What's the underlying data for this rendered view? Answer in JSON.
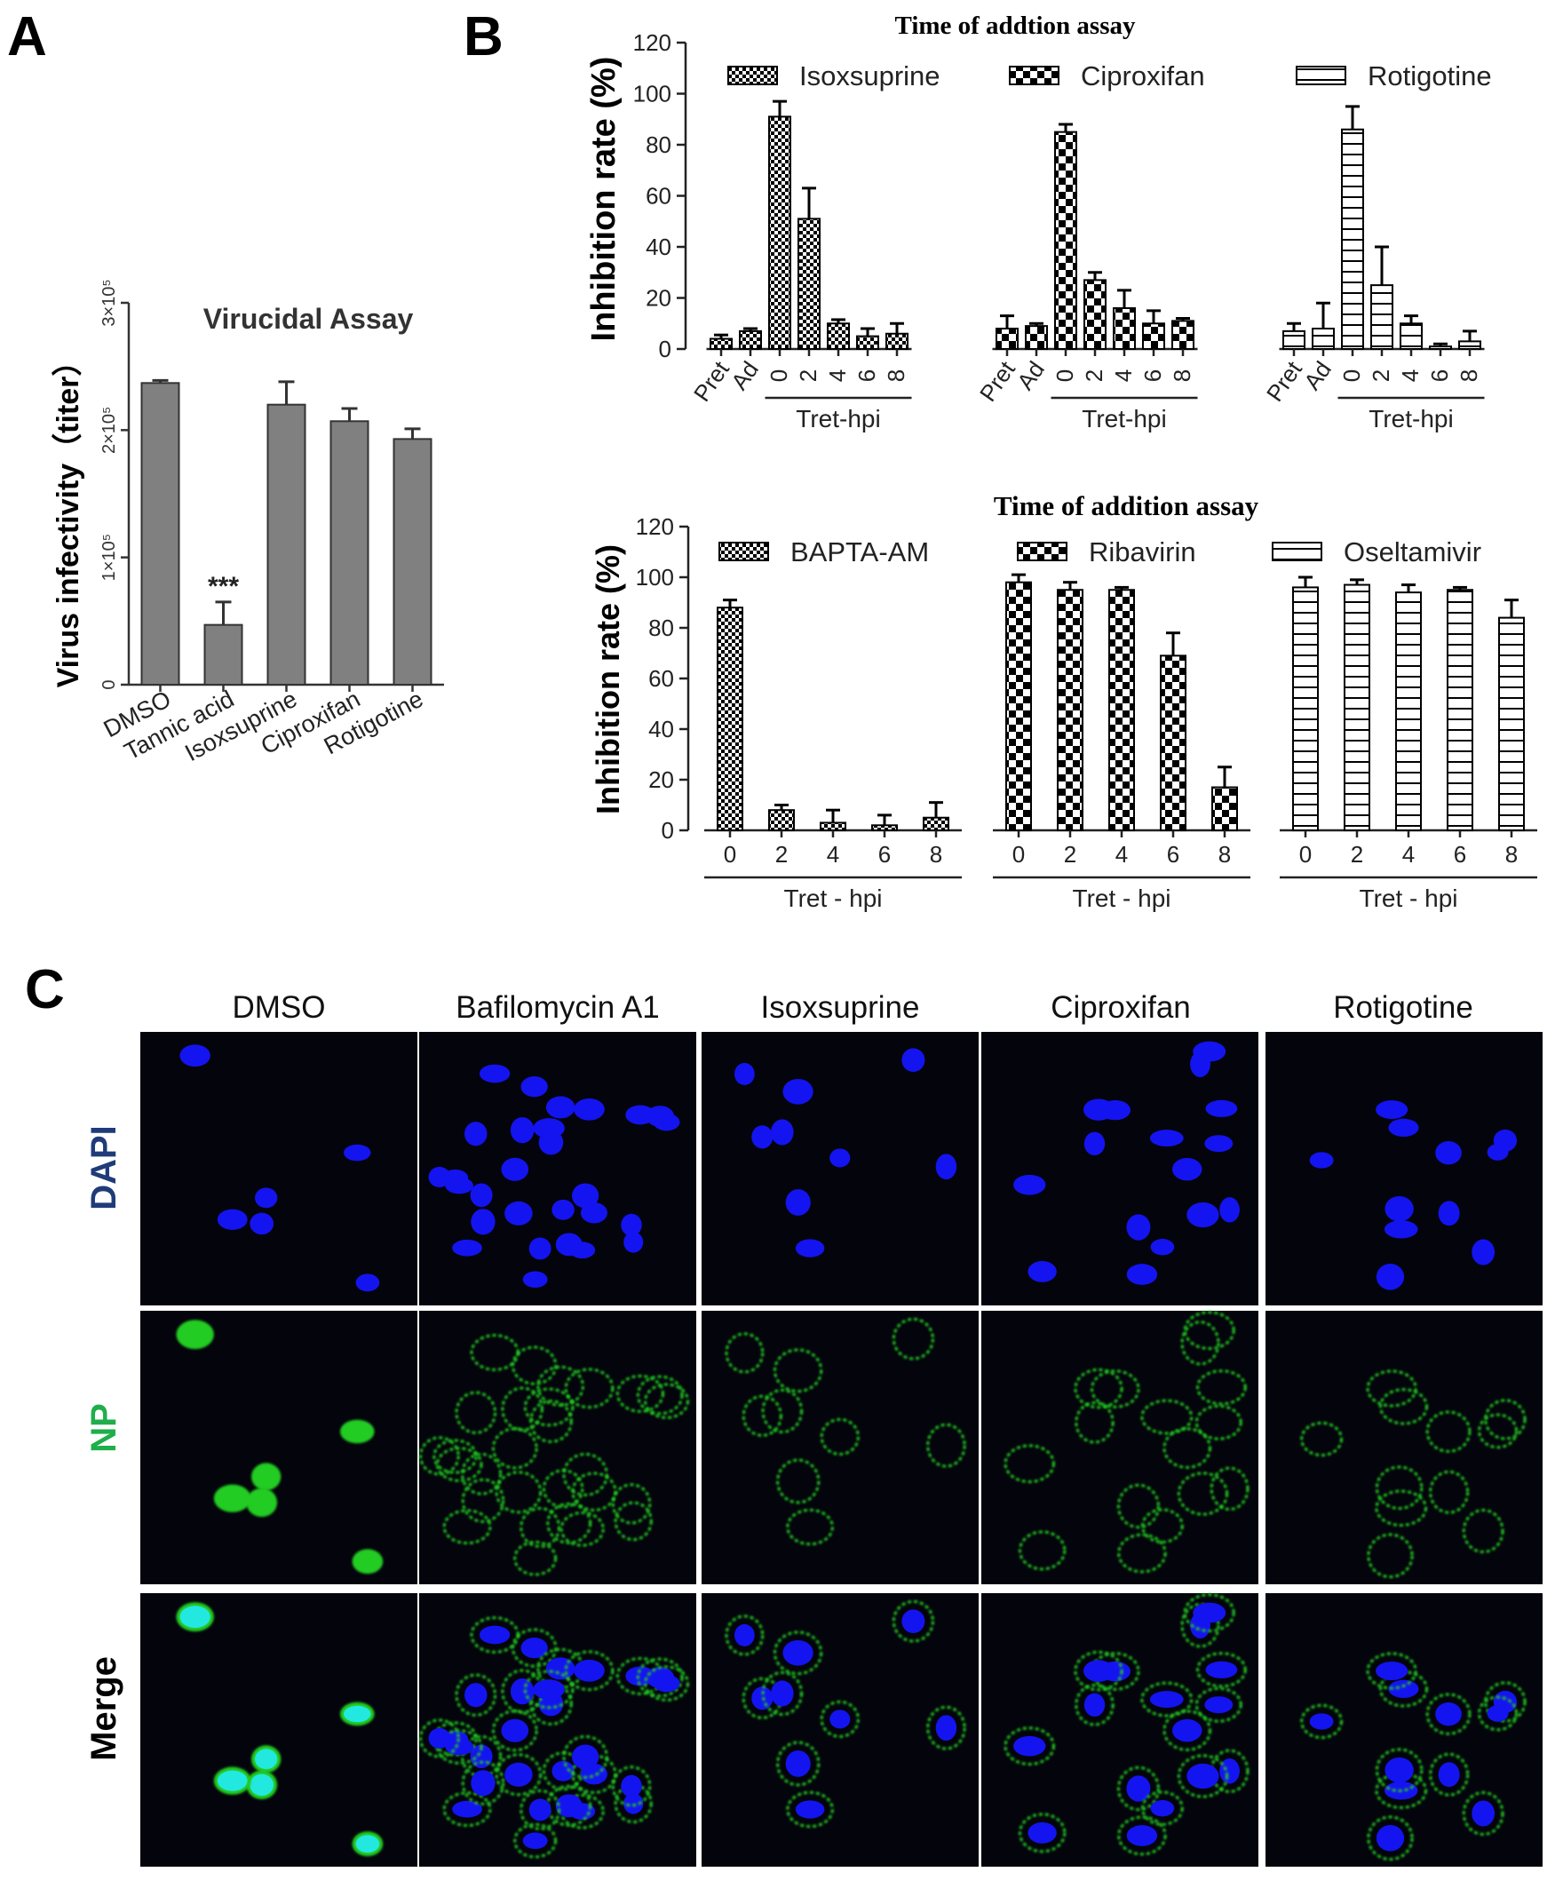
{
  "panels": {
    "a_label": "A",
    "b_label": "B",
    "c_label": "C"
  },
  "colors": {
    "bar_gray": "#808080",
    "dapi_label": "#1f3b7a",
    "np_label": "#1fae4b",
    "cell_blue": "#1414f0",
    "cell_green": "#22cc22",
    "cell_cyan": "#22e8e0",
    "image_bg": "#04040c"
  },
  "chart_data": [
    {
      "type": "bar",
      "id": "A",
      "title": "Virucidal Assay",
      "ylabel": "Virus infectivity（titer）",
      "yticks": [
        "0",
        "1×10⁵",
        "2×10⁵",
        "3×10⁵"
      ],
      "ytick_values": [
        0,
        100000,
        200000,
        300000
      ],
      "ylim": [
        0,
        300000
      ],
      "categories": [
        "DMSO",
        "Tannic acid",
        "Isoxsuprine",
        "Ciproxifan",
        "Rotigotine"
      ],
      "values": [
        237000,
        47000,
        220000,
        207000,
        193000
      ],
      "errors": [
        2000,
        18000,
        18000,
        10000,
        8000
      ],
      "annotations": [
        {
          "category": "Tannic acid",
          "text": "***"
        }
      ],
      "grid": false
    },
    {
      "type": "bar",
      "id": "B-top",
      "title": "Time of addtion assay",
      "ylabel": "Inhibition rate (%)",
      "ylim": [
        0,
        120
      ],
      "yticks": [
        0,
        20,
        40,
        60,
        80,
        100,
        120
      ],
      "group_label": "Tret-hpi",
      "categories": [
        "Pret",
        "Ad",
        "0",
        "2",
        "4",
        "6",
        "8"
      ],
      "series": [
        {
          "name": "Isoxsuprine",
          "pattern": "checker-small",
          "values": [
            4,
            7,
            91,
            51,
            10,
            5,
            6
          ],
          "errors": [
            1.5,
            1,
            6,
            12,
            1.5,
            3,
            4
          ]
        },
        {
          "name": "Ciproxifan",
          "pattern": "checker-large",
          "values": [
            8,
            9,
            85,
            27,
            16,
            10,
            11
          ],
          "errors": [
            5,
            1,
            3,
            3,
            7,
            5,
            1
          ]
        },
        {
          "name": "Rotigotine",
          "pattern": "horizontal",
          "values": [
            7,
            8,
            86,
            25,
            10,
            1,
            3
          ],
          "errors": [
            3,
            10,
            9,
            15,
            3,
            1,
            4
          ]
        }
      ],
      "legend": "top",
      "grid": false
    },
    {
      "type": "bar",
      "id": "B-bottom",
      "title": "Time of addition assay",
      "ylabel": "Inhibition rate (%)",
      "ylim": [
        0,
        120
      ],
      "yticks": [
        0,
        20,
        40,
        60,
        80,
        100,
        120
      ],
      "group_label": "Tret - hpi",
      "categories": [
        "0",
        "2",
        "4",
        "6",
        "8"
      ],
      "series": [
        {
          "name": "BAPTA-AM",
          "pattern": "checker-small",
          "values": [
            88,
            8,
            3,
            2,
            5
          ],
          "errors": [
            3,
            2,
            5,
            4,
            6
          ]
        },
        {
          "name": "Ribavirin",
          "pattern": "checker-large",
          "values": [
            98,
            95,
            95,
            69,
            17
          ],
          "errors": [
            3,
            3,
            1,
            9,
            8
          ]
        },
        {
          "name": "Oseltamivir",
          "pattern": "horizontal",
          "values": [
            96,
            97,
            94,
            95,
            84
          ],
          "errors": [
            4,
            2,
            3,
            1,
            7
          ]
        }
      ],
      "legend": "top",
      "grid": false
    }
  ],
  "micrographs": {
    "columns": [
      "DMSO",
      "Bafilomycin A1",
      "Isoxsuprine",
      "Ciproxifan",
      "Rotigotine"
    ],
    "rows": [
      "DAPI",
      "NP",
      "Merge"
    ]
  }
}
